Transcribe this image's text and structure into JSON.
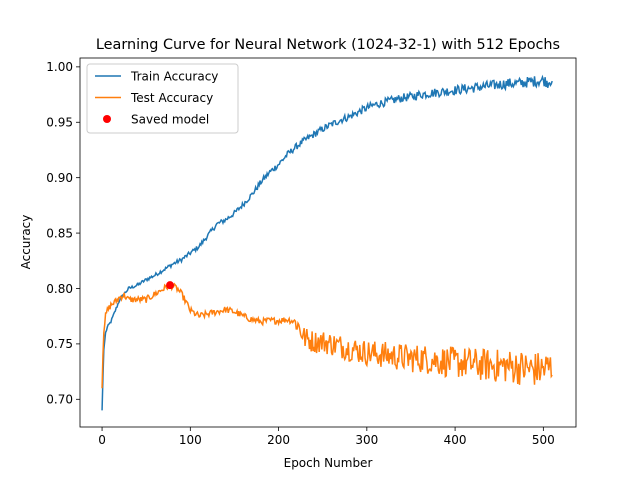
{
  "chart_data": {
    "type": "line",
    "title": "Learning Curve for Neural Network (1024-32-1) with 512 Epochs",
    "xlabel": "Epoch Number",
    "ylabel": "Accuracy",
    "xlim": [
      -25,
      537
    ],
    "ylim": [
      0.675,
      1.008
    ],
    "xticks": [
      0,
      100,
      200,
      300,
      400,
      500
    ],
    "yticks": [
      0.7,
      0.75,
      0.8,
      0.85,
      0.9,
      0.95,
      1.0
    ],
    "grid": false,
    "legend_position": "top-left",
    "series": [
      {
        "name": "Train Accuracy",
        "color": "#1f77b4",
        "x": [
          0,
          1,
          2,
          4,
          6,
          10,
          15,
          20,
          25,
          30,
          40,
          50,
          60,
          70,
          80,
          90,
          100,
          110,
          120,
          130,
          140,
          150,
          160,
          170,
          180,
          190,
          200,
          210,
          220,
          230,
          240,
          250,
          260,
          270,
          280,
          290,
          300,
          310,
          320,
          330,
          340,
          350,
          360,
          370,
          380,
          390,
          400,
          410,
          420,
          430,
          440,
          450,
          460,
          470,
          480,
          490,
          500,
          505,
          510
        ],
        "y": [
          0.69,
          0.72,
          0.745,
          0.76,
          0.765,
          0.77,
          0.78,
          0.79,
          0.795,
          0.8,
          0.803,
          0.808,
          0.812,
          0.817,
          0.822,
          0.826,
          0.832,
          0.838,
          0.848,
          0.858,
          0.862,
          0.868,
          0.876,
          0.885,
          0.896,
          0.905,
          0.912,
          0.921,
          0.928,
          0.934,
          0.939,
          0.944,
          0.948,
          0.952,
          0.955,
          0.959,
          0.963,
          0.966,
          0.968,
          0.97,
          0.972,
          0.973,
          0.975,
          0.976,
          0.977,
          0.978,
          0.979,
          0.98,
          0.981,
          0.982,
          0.983,
          0.984,
          0.985,
          0.985,
          0.986,
          0.987,
          0.988,
          0.986,
          0.989
        ],
        "noise": 0.004
      },
      {
        "name": "Test Accuracy",
        "color": "#ff7f0e",
        "x": [
          0,
          1,
          2,
          4,
          6,
          10,
          15,
          20,
          25,
          30,
          40,
          50,
          60,
          70,
          77,
          85,
          90,
          95,
          100,
          110,
          120,
          130,
          140,
          150,
          160,
          170,
          180,
          190,
          200,
          210,
          220,
          225,
          230,
          240,
          250,
          260,
          270,
          280,
          290,
          300,
          310,
          320,
          330,
          340,
          350,
          360,
          370,
          380,
          390,
          400,
          410,
          420,
          430,
          440,
          450,
          460,
          470,
          480,
          490,
          500,
          510
        ],
        "y": [
          0.71,
          0.74,
          0.76,
          0.775,
          0.78,
          0.785,
          0.788,
          0.792,
          0.794,
          0.79,
          0.79,
          0.79,
          0.795,
          0.8,
          0.803,
          0.8,
          0.795,
          0.788,
          0.78,
          0.775,
          0.777,
          0.779,
          0.781,
          0.779,
          0.775,
          0.772,
          0.77,
          0.771,
          0.771,
          0.772,
          0.77,
          0.762,
          0.755,
          0.752,
          0.752,
          0.75,
          0.748,
          0.746,
          0.744,
          0.742,
          0.741,
          0.74,
          0.739,
          0.738,
          0.737,
          0.737,
          0.736,
          0.735,
          0.734,
          0.733,
          0.733,
          0.732,
          0.731,
          0.731,
          0.73,
          0.73,
          0.729,
          0.728,
          0.727,
          0.727,
          0.729
        ],
        "noise": 0.012
      }
    ],
    "markers": [
      {
        "name": "Saved model",
        "color": "#ff0000",
        "x": 77,
        "y": 0.803
      }
    ]
  }
}
